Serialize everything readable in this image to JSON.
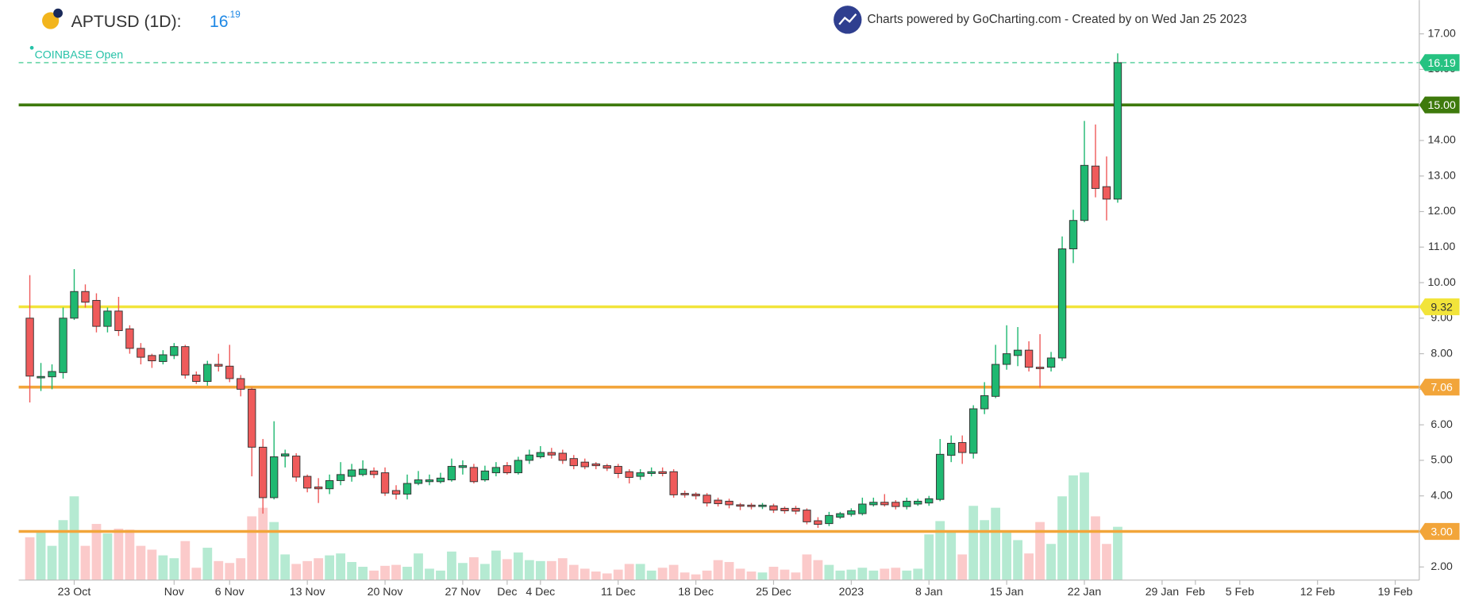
{
  "header": {
    "symbol": "APTUSD (1D):",
    "price_int": "16",
    "price_frac": ".19",
    "exchange": "COINBASE Open",
    "credit": "Charts powered by GoCharting.com - Created by  on Wed Jan 25 2023"
  },
  "chart_data": {
    "type": "candlestick",
    "up_color": "#1fb871",
    "down_color": "#ef5b5b",
    "up_volume_color": "#b5ead2",
    "down_volume_color": "#fbcaca",
    "x": [
      "2022-10-19",
      "2022-10-20",
      "2022-10-21",
      "2022-10-22",
      "2022-10-23",
      "2022-10-24",
      "2022-10-25",
      "2022-10-26",
      "2022-10-27",
      "2022-10-28",
      "2022-10-29",
      "2022-10-30",
      "2022-10-31",
      "2022-11-01",
      "2022-11-02",
      "2022-11-03",
      "2022-11-04",
      "2022-11-05",
      "2022-11-06",
      "2022-11-07",
      "2022-11-08",
      "2022-11-09",
      "2022-11-10",
      "2022-11-11",
      "2022-11-12",
      "2022-11-13",
      "2022-11-14",
      "2022-11-15",
      "2022-11-16",
      "2022-11-17",
      "2022-11-18",
      "2022-11-19",
      "2022-11-20",
      "2022-11-21",
      "2022-11-22",
      "2022-11-23",
      "2022-11-24",
      "2022-11-25",
      "2022-11-26",
      "2022-11-27",
      "2022-11-28",
      "2022-11-29",
      "2022-11-30",
      "2022-12-01",
      "2022-12-02",
      "2022-12-03",
      "2022-12-04",
      "2022-12-05",
      "2022-12-06",
      "2022-12-07",
      "2022-12-08",
      "2022-12-09",
      "2022-12-10",
      "2022-12-11",
      "2022-12-12",
      "2022-12-13",
      "2022-12-14",
      "2022-12-15",
      "2022-12-16",
      "2022-12-17",
      "2022-12-18",
      "2022-12-19",
      "2022-12-20",
      "2022-12-21",
      "2022-12-22",
      "2022-12-23",
      "2022-12-24",
      "2022-12-25",
      "2022-12-26",
      "2022-12-27",
      "2022-12-28",
      "2022-12-29",
      "2022-12-30",
      "2022-12-31",
      "2023-01-01",
      "2023-01-02",
      "2023-01-03",
      "2023-01-04",
      "2023-01-05",
      "2023-01-06",
      "2023-01-07",
      "2023-01-08",
      "2023-01-09",
      "2023-01-10",
      "2023-01-11",
      "2023-01-12",
      "2023-01-13",
      "2023-01-14",
      "2023-01-15",
      "2023-01-16",
      "2023-01-17",
      "2023-01-18",
      "2023-01-19",
      "2023-01-20",
      "2023-01-21",
      "2023-01-22",
      "2023-01-23",
      "2023-01-24",
      "2023-01-25"
    ],
    "open": [
      9.0,
      7.32,
      7.35,
      7.47,
      9.0,
      9.75,
      9.5,
      8.77,
      9.2,
      8.7,
      8.15,
      7.95,
      7.78,
      7.95,
      8.2,
      7.4,
      7.22,
      7.7,
      7.65,
      7.3,
      7.0,
      5.37,
      3.95,
      5.12,
      5.12,
      4.55,
      4.25,
      4.2,
      4.43,
      4.55,
      4.6,
      4.7,
      4.65,
      4.15,
      4.05,
      4.35,
      4.4,
      4.4,
      4.45,
      4.8,
      4.8,
      4.45,
      4.65,
      4.85,
      4.65,
      5.0,
      5.1,
      5.22,
      5.2,
      5.05,
      4.95,
      4.9,
      4.85,
      4.83,
      4.68,
      4.55,
      4.63,
      4.68,
      4.68,
      4.07,
      4.05,
      4.02,
      3.88,
      3.85,
      3.75,
      3.74,
      3.7,
      3.72,
      3.65,
      3.65,
      3.6,
      3.3,
      3.22,
      3.4,
      3.48,
      3.5,
      3.75,
      3.82,
      3.82,
      3.7,
      3.77,
      3.8,
      3.9,
      5.14,
      5.5,
      5.2,
      6.45,
      6.8,
      7.7,
      7.95,
      8.1,
      7.62,
      7.62,
      7.88,
      10.95,
      11.75,
      13.28,
      12.7,
      12.35
    ],
    "high": [
      10.21,
      7.74,
      7.7,
      9.3,
      10.38,
      9.95,
      9.7,
      9.3,
      9.6,
      8.8,
      8.3,
      8.0,
      8.1,
      8.3,
      8.25,
      7.5,
      7.8,
      8.0,
      8.25,
      7.4,
      7.05,
      5.6,
      6.1,
      5.3,
      5.2,
      4.6,
      4.5,
      4.6,
      4.95,
      4.9,
      5.0,
      4.8,
      4.8,
      4.3,
      4.6,
      4.7,
      4.6,
      4.65,
      5.05,
      5.0,
      4.9,
      4.85,
      4.95,
      4.95,
      5.1,
      5.3,
      5.4,
      5.35,
      5.3,
      5.15,
      5.05,
      4.95,
      4.9,
      4.9,
      4.75,
      4.75,
      4.8,
      4.8,
      4.75,
      4.15,
      4.1,
      4.08,
      3.95,
      3.92,
      3.8,
      3.8,
      3.8,
      3.78,
      3.7,
      3.72,
      3.65,
      3.4,
      3.55,
      3.55,
      3.65,
      3.95,
      3.95,
      4.05,
      3.88,
      3.95,
      3.92,
      4.0,
      5.6,
      5.7,
      5.7,
      6.55,
      7.2,
      8.25,
      8.8,
      8.75,
      8.35,
      8.55,
      8.05,
      11.3,
      12.05,
      14.55,
      14.45,
      13.55,
      16.45
    ],
    "low": [
      6.63,
      6.95,
      7.0,
      7.3,
      8.95,
      9.3,
      8.6,
      8.6,
      8.5,
      8.0,
      7.7,
      7.6,
      7.7,
      7.85,
      7.3,
      7.15,
      7.1,
      7.5,
      7.2,
      6.8,
      4.55,
      3.5,
      3.9,
      4.8,
      4.4,
      4.1,
      3.8,
      4.05,
      4.3,
      4.4,
      4.55,
      4.5,
      4.0,
      3.9,
      3.9,
      4.3,
      4.3,
      4.35,
      4.4,
      4.6,
      4.35,
      4.4,
      4.55,
      4.6,
      4.6,
      4.9,
      5.05,
      5.05,
      4.9,
      4.75,
      4.75,
      4.75,
      4.7,
      4.5,
      4.35,
      4.45,
      4.55,
      4.55,
      3.95,
      3.95,
      3.9,
      3.7,
      3.7,
      3.65,
      3.6,
      3.62,
      3.63,
      3.52,
      3.5,
      3.48,
      3.2,
      3.1,
      3.15,
      3.35,
      3.42,
      3.45,
      3.7,
      3.7,
      3.62,
      3.62,
      3.72,
      3.72,
      3.85,
      4.95,
      4.9,
      5.05,
      6.3,
      6.75,
      7.55,
      7.65,
      7.5,
      7.05,
      7.5,
      7.8,
      10.55,
      11.7,
      12.4,
      11.75,
      12.25
    ],
    "close": [
      7.37,
      7.36,
      7.5,
      9.0,
      9.75,
      9.45,
      8.77,
      9.2,
      8.65,
      8.15,
      7.9,
      7.8,
      7.97,
      8.2,
      7.4,
      7.22,
      7.7,
      7.65,
      7.3,
      7.0,
      5.37,
      3.95,
      5.1,
      5.18,
      4.53,
      4.22,
      4.2,
      4.43,
      4.6,
      4.73,
      4.75,
      4.6,
      4.08,
      4.05,
      4.35,
      4.45,
      4.45,
      4.5,
      4.83,
      4.85,
      4.4,
      4.7,
      4.8,
      4.65,
      5.0,
      5.15,
      5.22,
      5.15,
      5.0,
      4.85,
      4.82,
      4.85,
      4.78,
      4.63,
      4.52,
      4.65,
      4.68,
      4.63,
      4.03,
      4.03,
      4.0,
      3.8,
      3.78,
      3.75,
      3.72,
      3.7,
      3.74,
      3.6,
      3.58,
      3.57,
      3.27,
      3.2,
      3.45,
      3.5,
      3.58,
      3.77,
      3.82,
      3.75,
      3.7,
      3.85,
      3.85,
      3.92,
      5.17,
      5.48,
      5.22,
      6.45,
      6.82,
      7.7,
      8.0,
      8.1,
      7.62,
      7.58,
      7.88,
      10.95,
      11.75,
      13.3,
      12.65,
      12.35,
      16.19
    ],
    "volume": [
      45,
      52,
      36,
      63,
      88,
      36,
      59,
      49,
      54,
      53,
      36,
      32,
      26,
      23,
      41,
      13,
      34,
      20,
      18,
      23,
      67,
      76,
      61,
      27,
      17,
      20,
      23,
      26,
      28,
      19,
      14,
      10,
      15,
      16,
      14,
      28,
      12,
      10,
      30,
      18,
      24,
      17,
      31,
      22,
      29,
      21,
      20,
      20,
      23,
      16,
      12,
      9,
      7,
      11,
      17,
      17,
      10,
      13,
      16,
      8,
      6,
      10,
      21,
      19,
      12,
      9,
      8,
      14,
      11,
      8,
      27,
      21,
      16,
      10,
      11,
      13,
      10,
      12,
      13,
      10,
      12,
      48,
      62,
      50,
      27,
      78,
      63,
      76,
      50,
      42,
      28,
      61,
      38,
      88,
      110,
      113,
      67,
      38,
      56
    ],
    "xlim": [
      "2022-10-18",
      "2023-02-21"
    ],
    "xticks": [
      {
        "value": "2022-10-23",
        "label": "23 Oct"
      },
      {
        "value": "2022-11-01",
        "label": "Nov"
      },
      {
        "value": "2022-11-06",
        "label": "6 Nov"
      },
      {
        "value": "2022-11-13",
        "label": "13 Nov"
      },
      {
        "value": "2022-11-20",
        "label": "20 Nov"
      },
      {
        "value": "2022-11-27",
        "label": "27 Nov"
      },
      {
        "value": "2022-12-01",
        "label": "Dec"
      },
      {
        "value": "2022-12-04",
        "label": "4 Dec"
      },
      {
        "value": "2022-12-11",
        "label": "11 Dec"
      },
      {
        "value": "2022-12-18",
        "label": "18 Dec"
      },
      {
        "value": "2022-12-25",
        "label": "25 Dec"
      },
      {
        "value": "2023-01-01",
        "label": "2023"
      },
      {
        "value": "2023-01-08",
        "label": "8 Jan"
      },
      {
        "value": "2023-01-15",
        "label": "15 Jan"
      },
      {
        "value": "2023-01-22",
        "label": "22 Jan"
      },
      {
        "value": "2023-01-29",
        "label": "29 Jan"
      },
      {
        "value": "2023-02-01",
        "label": "Feb"
      },
      {
        "value": "2023-02-05",
        "label": "5 Feb"
      },
      {
        "value": "2023-02-12",
        "label": "12 Feb"
      },
      {
        "value": "2023-02-19",
        "label": "19 Feb"
      }
    ],
    "ylim": [
      1.63,
      17.95
    ],
    "yticks": [
      {
        "value": 2,
        "label": "2.00"
      },
      {
        "value": 3,
        "label": "3.00"
      },
      {
        "value": 4,
        "label": "4.00"
      },
      {
        "value": 5,
        "label": "5.00"
      },
      {
        "value": 6,
        "label": "6.00"
      },
      {
        "value": 7,
        "label": "7.00"
      },
      {
        "value": 8,
        "label": "8.00"
      },
      {
        "value": 9,
        "label": "9.00"
      },
      {
        "value": 10,
        "label": "10.00"
      },
      {
        "value": 11,
        "label": "11.00"
      },
      {
        "value": 12,
        "label": "12.00"
      },
      {
        "value": 13,
        "label": "13.00"
      },
      {
        "value": 14,
        "label": "14.00"
      },
      {
        "value": 15,
        "label": "15.00"
      },
      {
        "value": 16,
        "label": "16.00"
      },
      {
        "value": 17,
        "label": "17.00"
      }
    ],
    "lines": [
      {
        "value": 16.19,
        "label": "16.19",
        "color": "#26c281",
        "text_color": "#ffffff",
        "dashed": true
      },
      {
        "value": 15,
        "label": "15.00",
        "color": "#3e7a0c",
        "text_color": "#ffffff",
        "dashed": false
      },
      {
        "value": 9.32,
        "label": "9.32",
        "color": "#f2e43a",
        "text_color": "#333333",
        "dashed": false
      },
      {
        "value": 7.06,
        "label": "7.06",
        "color": "#f2a53a",
        "text_color": "#ffffff",
        "dashed": false
      },
      {
        "value": 3,
        "label": "3.00",
        "color": "#f2a53a",
        "text_color": "#ffffff",
        "dashed": false
      }
    ]
  }
}
